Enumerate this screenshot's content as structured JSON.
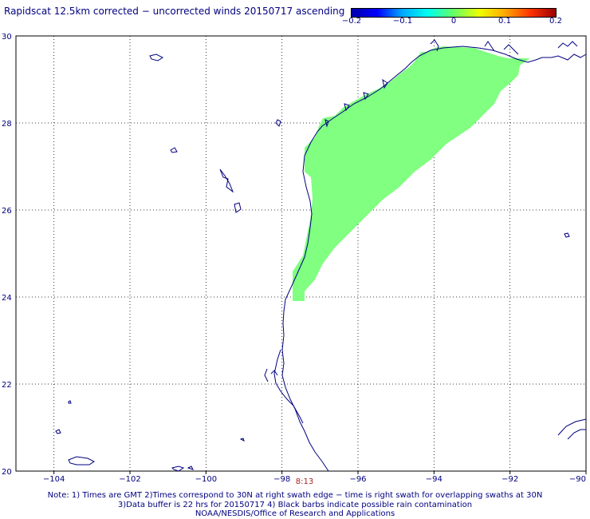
{
  "title": "Rapidscat 12.5km corrected − uncorrected winds 20150717 ascending",
  "colorbar": {
    "tick_labels": [
      "−0.2",
      "−0.1",
      "0",
      "0.1",
      "0.2"
    ],
    "ticks": [
      -0.2,
      -0.1,
      0,
      0.1,
      0.2
    ],
    "range": [
      -0.2,
      0.2
    ],
    "colors": [
      "#0000aa",
      "#0000ff",
      "#00aaff",
      "#00ffee",
      "#66ff66",
      "#eeff00",
      "#ffaa00",
      "#ff3300",
      "#990000"
    ]
  },
  "map": {
    "lon_range": [
      -105,
      -90
    ],
    "lat_range": [
      20,
      30
    ],
    "x_tick_values": [
      -104,
      -102,
      -100,
      -98,
      -96,
      -94,
      -92,
      -90
    ],
    "x_tick_labels": [
      "−104",
      "−102",
      "−100",
      "−98",
      "−96",
      "−94",
      "−92",
      "−90"
    ],
    "y_tick_values": [
      20,
      22,
      24,
      26,
      28,
      30
    ],
    "y_tick_labels": [
      "20",
      "22",
      "24",
      "26",
      "28",
      "30"
    ],
    "grid": "dotted",
    "coastline_color": "#000080",
    "swath_color": "#80ff80",
    "swath_value": 0,
    "swath_time_label": "8:13",
    "swath_time_color": "#aa2222"
  },
  "notes": [
    "Note: 1) Times are GMT 2)Times correspond to 30N at right swath edge − time is right swath for overlapping swaths at 30N",
    "3)Data buffer is 22 hrs for 20150717 4) Black barbs indicate possible rain contamination",
    "NOAA/NESDIS/Office of Research and Applications"
  ]
}
